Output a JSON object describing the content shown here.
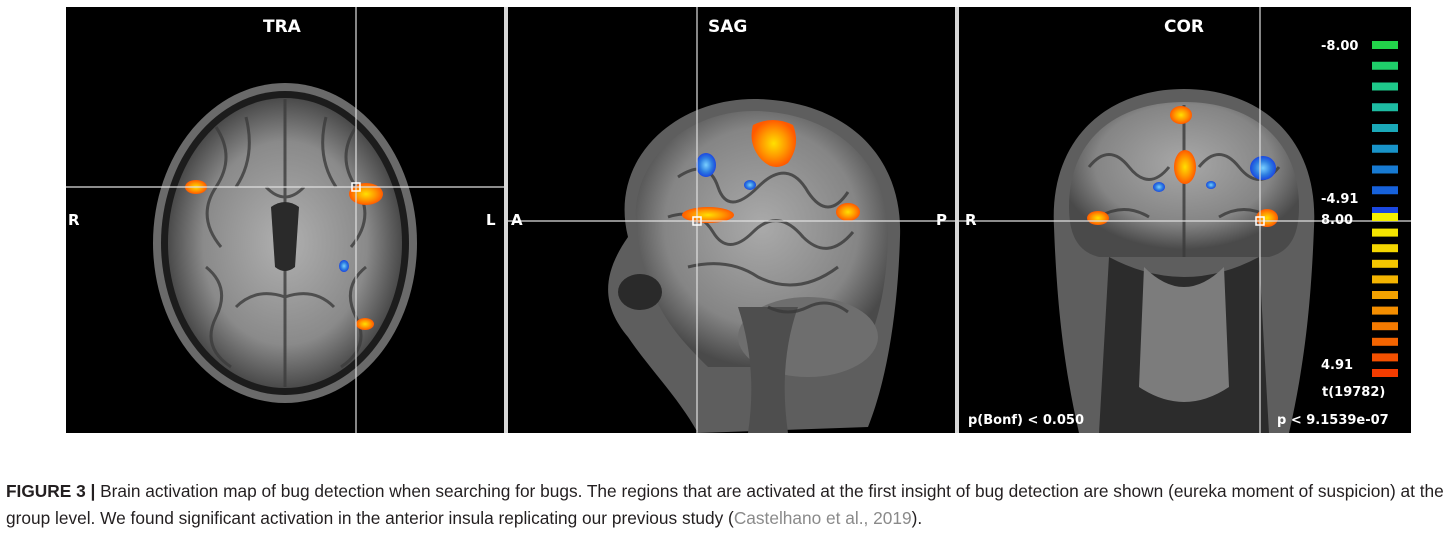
{
  "panels": {
    "tra": {
      "title": "TRA",
      "left_label": "R",
      "right_label": "L"
    },
    "sag": {
      "title": "SAG",
      "left_label": "A",
      "right_label": "P"
    },
    "cor": {
      "title": "COR",
      "left_label": "R"
    }
  },
  "colorbar": {
    "labels": [
      "-8.00",
      "-4.91",
      "8.00",
      "4.91",
      "t(19782)"
    ],
    "negative_colors": [
      "#22d34a",
      "#1fcf6a",
      "#1ec88a",
      "#1dbba2",
      "#1aa8b8",
      "#1893c8",
      "#177ad2",
      "#1661da",
      "#1b48e0"
    ],
    "positive_colors": [
      "#f4f000",
      "#f4e400",
      "#f4d600",
      "#f4c600",
      "#f4b400",
      "#f4a200",
      "#f48e00",
      "#f47a00",
      "#f46400",
      "#f45000",
      "#f43c00"
    ]
  },
  "stats": {
    "p_bonf": "p(Bonf) < 0.050",
    "p_value": "p < 9.1539e-07"
  },
  "caption": {
    "label": "FIGURE 3 |",
    "text": " Brain activation map of bug detection when searching for bugs. The regions that are activated at the first insight of bug detection are shown (eureka moment of suspicion) at the group level. We found significant activation in the anterior insula replicating our previous study (",
    "citation": "Castelhano et al., 2019",
    "end": ")."
  }
}
